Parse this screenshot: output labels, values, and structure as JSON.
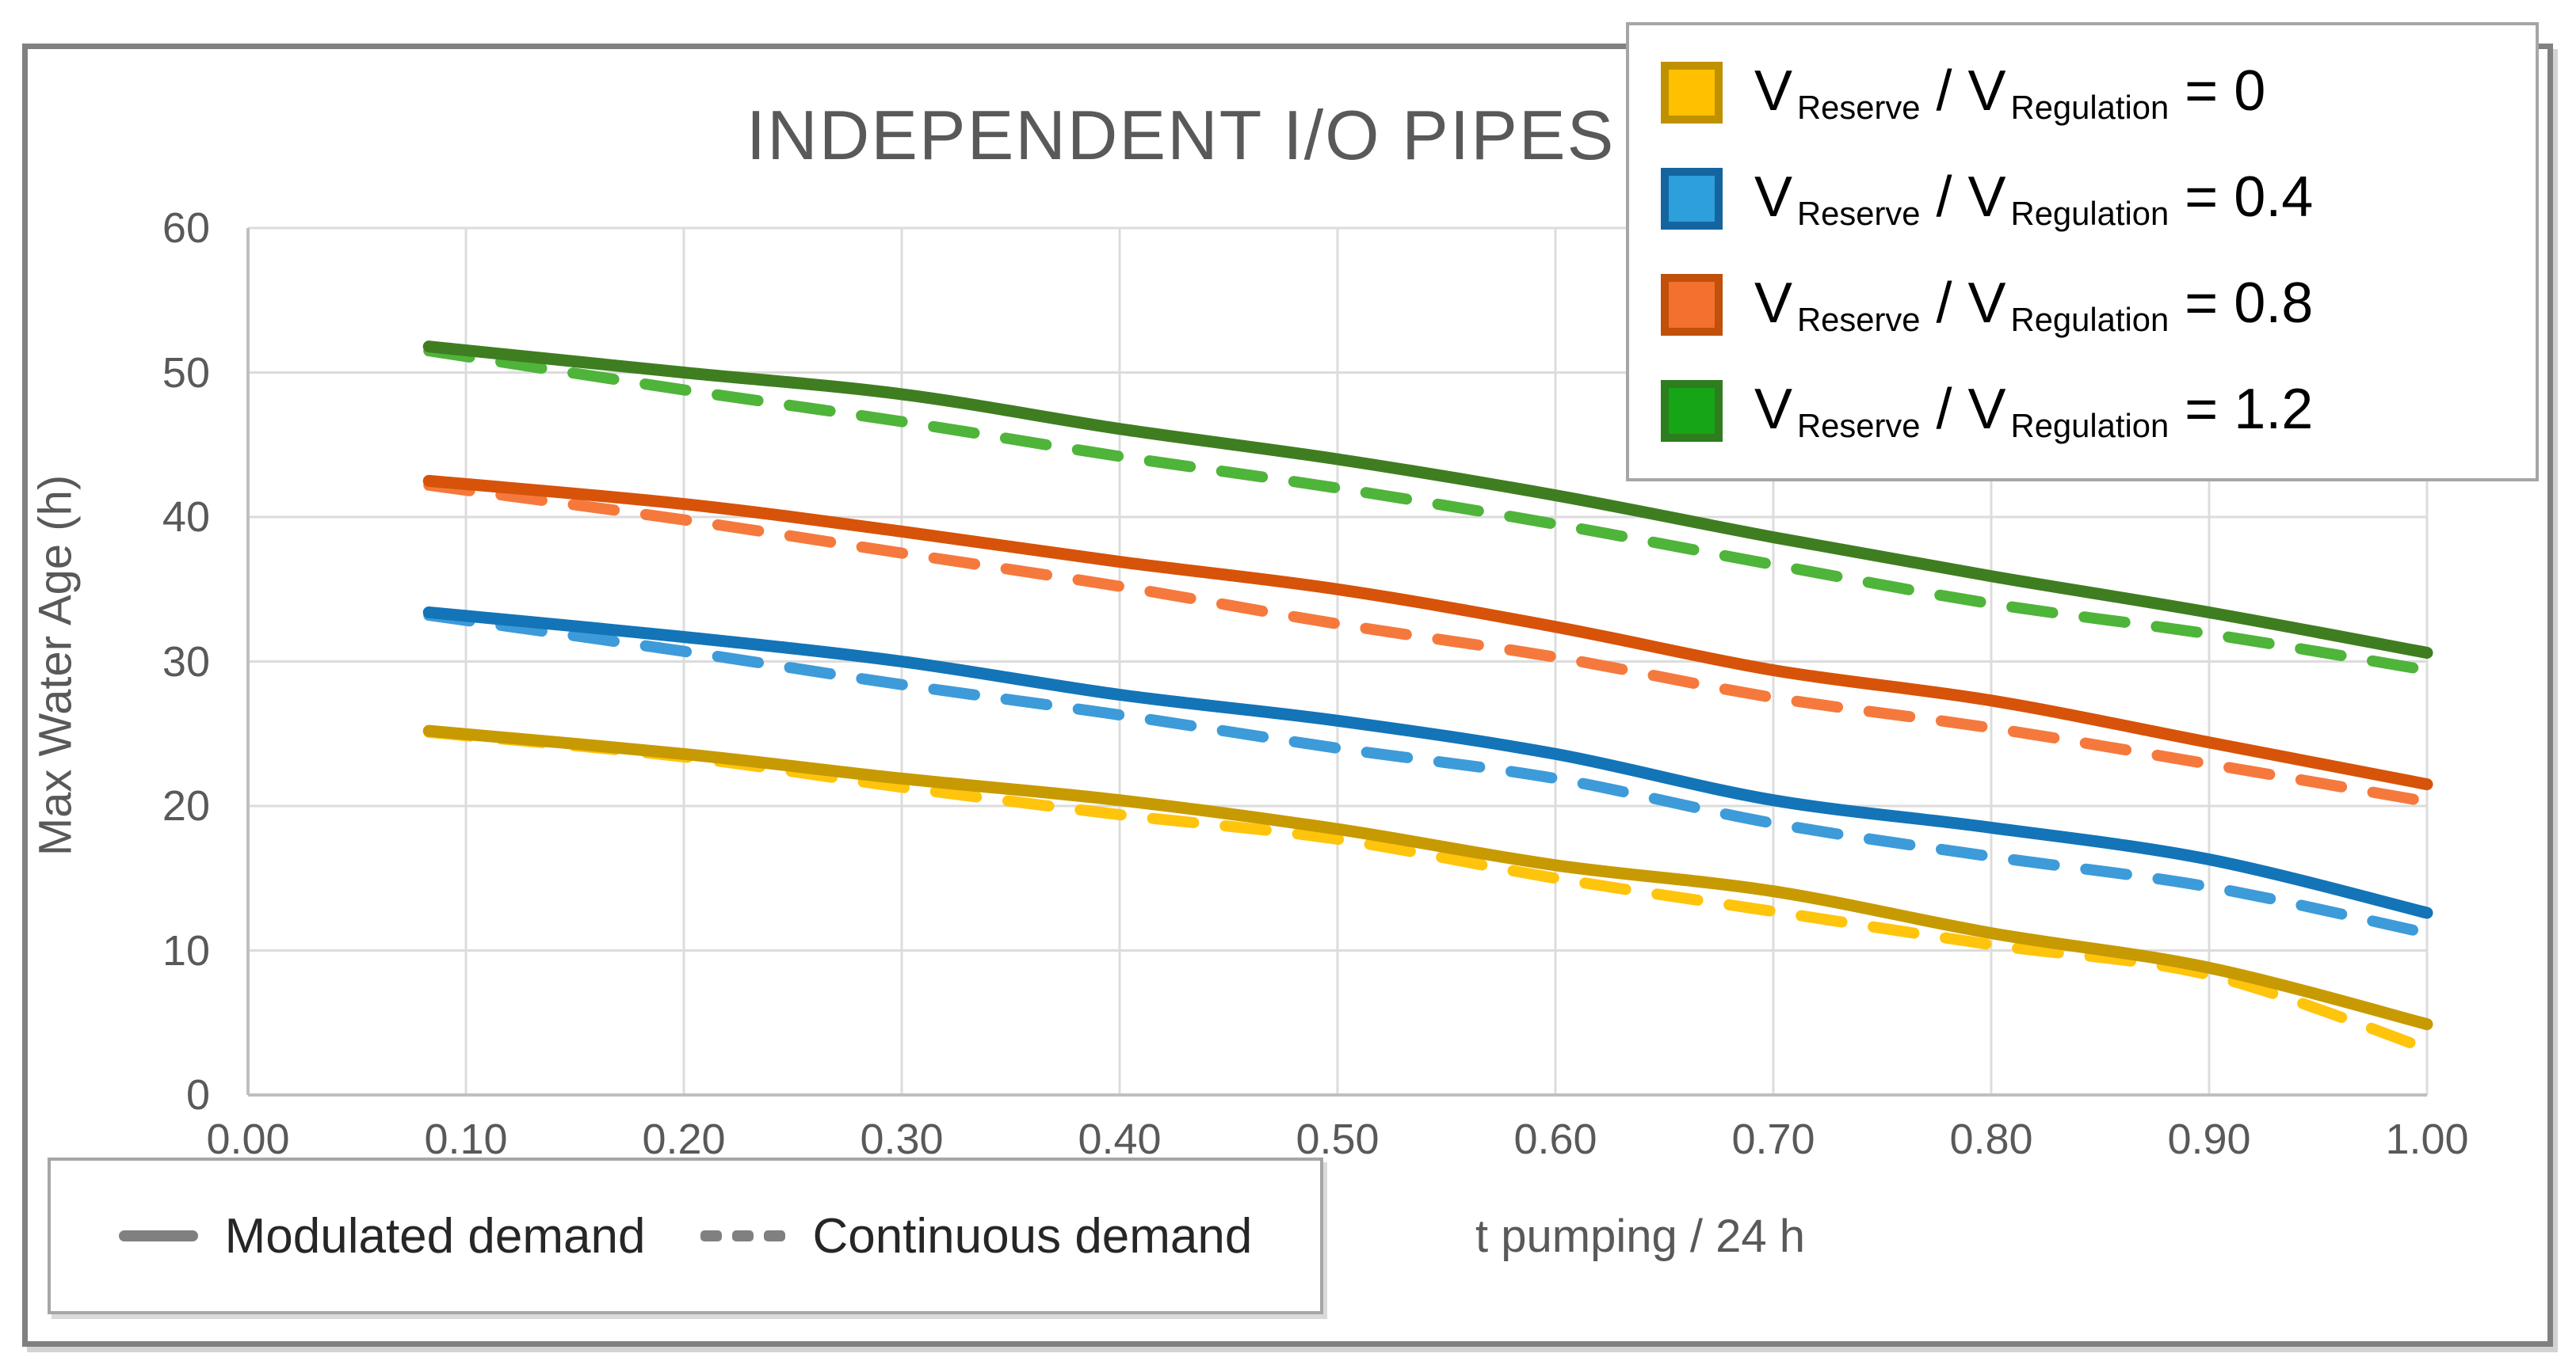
{
  "title": "INDEPENDENT I/O PIPES",
  "axes": {
    "x": {
      "label": "t pumping / 24 h",
      "tick_labels": [
        "0.00",
        "0.10",
        "0.20",
        "0.30",
        "0.40",
        "0.50",
        "0.60",
        "0.70",
        "0.80",
        "0.90",
        "1.00"
      ],
      "tick_values": [
        0,
        0.1,
        0.2,
        0.3,
        0.4,
        0.5,
        0.6,
        0.7,
        0.8,
        0.9,
        1.0
      ]
    },
    "y": {
      "label": "Max Water Age (h)",
      "tick_labels": [
        "0",
        "10",
        "20",
        "30",
        "40",
        "50",
        "60"
      ],
      "tick_values": [
        0,
        10,
        20,
        30,
        40,
        50,
        60
      ]
    }
  },
  "ratio_legend": {
    "items": [
      {
        "fill": "#FFC000",
        "border": "#BF9000",
        "label_parts": [
          {
            "t": "V",
            "sub": false
          },
          {
            "t": "Reserve",
            "sub": true
          },
          {
            "t": " / V",
            "sub": false
          },
          {
            "t": "Regulation",
            "sub": true
          },
          {
            "t": " = 0",
            "sub": false
          }
        ]
      },
      {
        "fill": "#2D9FDB",
        "border": "#1464A0",
        "label_parts": [
          {
            "t": "V",
            "sub": false
          },
          {
            "t": "Reserve",
            "sub": true
          },
          {
            "t": " / V",
            "sub": false
          },
          {
            "t": "Regulation",
            "sub": true
          },
          {
            "t": " = 0.4",
            "sub": false
          }
        ]
      },
      {
        "fill": "#F4702E",
        "border": "#C0500A",
        "label_parts": [
          {
            "t": "V",
            "sub": false
          },
          {
            "t": "Reserve",
            "sub": true
          },
          {
            "t": " / V",
            "sub": false
          },
          {
            "t": "Regulation",
            "sub": true
          },
          {
            "t": " = 0.8",
            "sub": false
          }
        ]
      },
      {
        "fill": "#16A516",
        "border": "#2E7D1E",
        "label_parts": [
          {
            "t": "V",
            "sub": false
          },
          {
            "t": "Reserve",
            "sub": true
          },
          {
            "t": " / V",
            "sub": false
          },
          {
            "t": "Regulation",
            "sub": true
          },
          {
            "t": " = 1.2",
            "sub": false
          }
        ]
      }
    ]
  },
  "style_legend": {
    "sample_color": "#808080",
    "items": [
      {
        "label": "Modulated demand",
        "style": "solid"
      },
      {
        "label": "Continuous demand",
        "style": "dashed"
      }
    ]
  },
  "palette": {
    "grid": "#DCDCDC",
    "axis": "#BFBFBF",
    "outer_border": "#808080",
    "legend_border": "#A6A6A6",
    "text_gray": "#595959"
  },
  "chart_data": {
    "type": "line",
    "title": "INDEPENDENT I/O PIPES",
    "xlabel": "t pumping / 24 h",
    "ylabel": "Max Water Age (h)",
    "xlim": [
      0,
      1
    ],
    "ylim": [
      0,
      60
    ],
    "grid": true,
    "legend_position": "top-right",
    "x": [
      0.083,
      0.2,
      0.3,
      0.4,
      0.5,
      0.6,
      0.7,
      0.8,
      0.9,
      1.0
    ],
    "series": [
      {
        "name": "V Reserve / V Regulation = 0 — Continuous demand",
        "ratio": 0,
        "demand": "Continuous",
        "dash": true,
        "color": "#FFC40C",
        "values": [
          25.1,
          23.4,
          21.3,
          19.4,
          17.7,
          15.0,
          12.7,
          10.4,
          8.3,
          3.2
        ]
      },
      {
        "name": "V Reserve / V Regulation = 0 — Modulated demand",
        "ratio": 0,
        "demand": "Modulated",
        "dash": false,
        "color": "#C79A02",
        "values": [
          25.2,
          23.6,
          21.9,
          20.4,
          18.4,
          15.9,
          14.1,
          11.2,
          8.8,
          4.9
        ]
      },
      {
        "name": "V Reserve / V Regulation = 0.4 — Continuous demand",
        "ratio": 0.4,
        "demand": "Continuous",
        "dash": true,
        "color": "#3D9BD9",
        "values": [
          33.2,
          30.7,
          28.4,
          26.3,
          24.0,
          21.9,
          18.8,
          16.5,
          14.4,
          11.2
        ]
      },
      {
        "name": "V Reserve / V Regulation = 0.4 — Modulated demand",
        "ratio": 0.4,
        "demand": "Modulated",
        "dash": false,
        "color": "#1374B8",
        "values": [
          33.4,
          31.7,
          30.0,
          27.7,
          25.9,
          23.6,
          20.4,
          18.5,
          16.3,
          12.6
        ]
      },
      {
        "name": "V Reserve / V Regulation = 0.8 — Continuous demand",
        "ratio": 0.8,
        "demand": "Continuous",
        "dash": true,
        "color": "#F5793D",
        "values": [
          42.2,
          39.8,
          37.5,
          35.2,
          32.6,
          30.3,
          27.5,
          25.4,
          22.9,
          20.3
        ]
      },
      {
        "name": "V Reserve / V Regulation = 0.8 — Modulated demand",
        "ratio": 0.8,
        "demand": "Modulated",
        "dash": false,
        "color": "#D65309",
        "values": [
          42.5,
          40.9,
          39.0,
          36.9,
          35.0,
          32.4,
          29.4,
          27.3,
          24.4,
          21.5
        ]
      },
      {
        "name": "V Reserve / V Regulation = 1.2 — Continuous demand",
        "ratio": 1.2,
        "demand": "Continuous",
        "dash": true,
        "color": "#4FB43A",
        "values": [
          51.5,
          48.8,
          46.6,
          44.2,
          42.0,
          39.5,
          36.7,
          34.0,
          31.9,
          29.4
        ]
      },
      {
        "name": "V Reserve / V Regulation = 1.2 — Modulated demand",
        "ratio": 1.2,
        "demand": "Modulated",
        "dash": false,
        "color": "#3F7D21",
        "values": [
          51.8,
          50.0,
          48.5,
          46.1,
          44.0,
          41.5,
          38.6,
          35.9,
          33.4,
          30.6
        ]
      }
    ]
  }
}
